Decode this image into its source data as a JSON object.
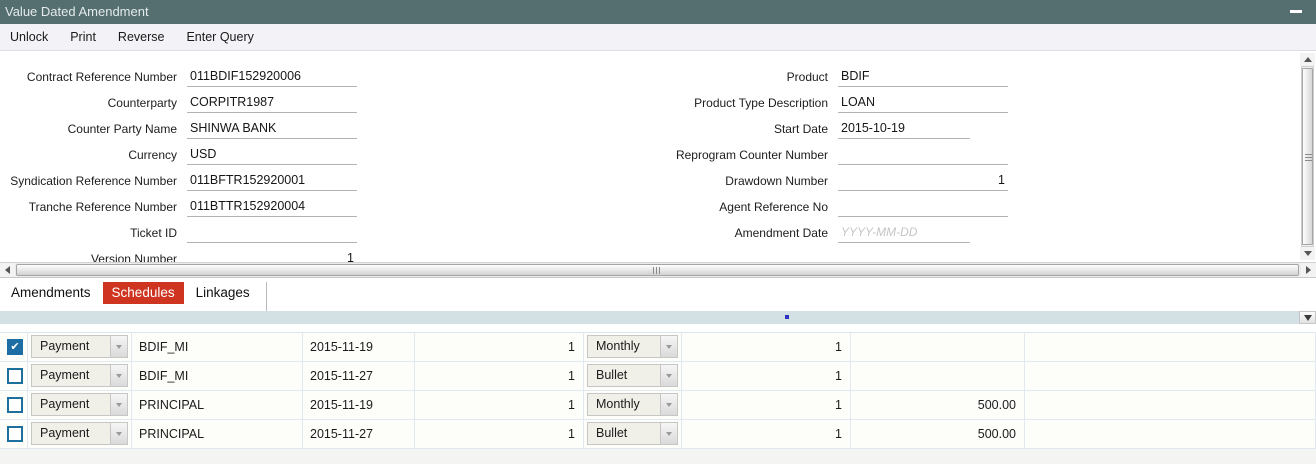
{
  "window": {
    "title": "Value Dated Amendment"
  },
  "icons": {
    "minimize": "minimize-dash",
    "scroll_up": "triangle-up",
    "scroll_down": "triangle-down",
    "scroll_left": "triangle-left",
    "scroll_right": "triangle-right",
    "dropdown": "triangle-down"
  },
  "colors": {
    "titlebar": "#556e70",
    "active_tab": "#cf3420",
    "checkbox_checked": "#1c6ea4",
    "grid_strip": "#d3e1e4"
  },
  "toolbar": {
    "items": [
      "Unlock",
      "Print",
      "Reverse",
      "Enter Query"
    ]
  },
  "form": {
    "left": [
      {
        "label": "Contract Reference Number",
        "value": "011BDIF152920006"
      },
      {
        "label": "Counterparty",
        "value": "CORPITR1987"
      },
      {
        "label": "Counter Party Name",
        "value": "SHINWA BANK"
      },
      {
        "label": "Currency",
        "value": "USD"
      },
      {
        "label": "Syndication Reference Number",
        "value": "011BFTR152920001"
      },
      {
        "label": "Tranche Reference Number",
        "value": "011BTTR152920004"
      },
      {
        "label": "Ticket ID",
        "value": ""
      },
      {
        "label": "Version Number",
        "value": "1"
      }
    ],
    "right": [
      {
        "label": "Product",
        "value": "BDIF"
      },
      {
        "label": "Product Type Description",
        "value": "LOAN"
      },
      {
        "label": "Start Date",
        "value": "2015-10-19"
      },
      {
        "label": "Reprogram Counter Number",
        "value": ""
      },
      {
        "label": "Drawdown Number",
        "value": "1"
      },
      {
        "label": "Agent Reference No",
        "value": ""
      },
      {
        "label": "Amendment Date",
        "value": "",
        "placeholder": "YYYY-MM-DD"
      }
    ]
  },
  "tabs": [
    {
      "label": "Amendments",
      "active": false
    },
    {
      "label": "Schedules",
      "active": true
    },
    {
      "label": "Linkages",
      "active": false
    }
  ],
  "table": {
    "rows": [
      {
        "checked": true,
        "type": "Payment",
        "component": "BDIF_MI",
        "date": "2015-11-19",
        "qty": "1",
        "frequency": "Monthly",
        "count": "1",
        "amount": ""
      },
      {
        "checked": false,
        "type": "Payment",
        "component": "BDIF_MI",
        "date": "2015-11-27",
        "qty": "1",
        "frequency": "Bullet",
        "count": "1",
        "amount": ""
      },
      {
        "checked": false,
        "type": "Payment",
        "component": "PRINCIPAL",
        "date": "2015-11-19",
        "qty": "1",
        "frequency": "Monthly",
        "count": "1",
        "amount": "500.00"
      },
      {
        "checked": false,
        "type": "Payment",
        "component": "PRINCIPAL",
        "date": "2015-11-27",
        "qty": "1",
        "frequency": "Bullet",
        "count": "1",
        "amount": "500.00"
      }
    ]
  }
}
